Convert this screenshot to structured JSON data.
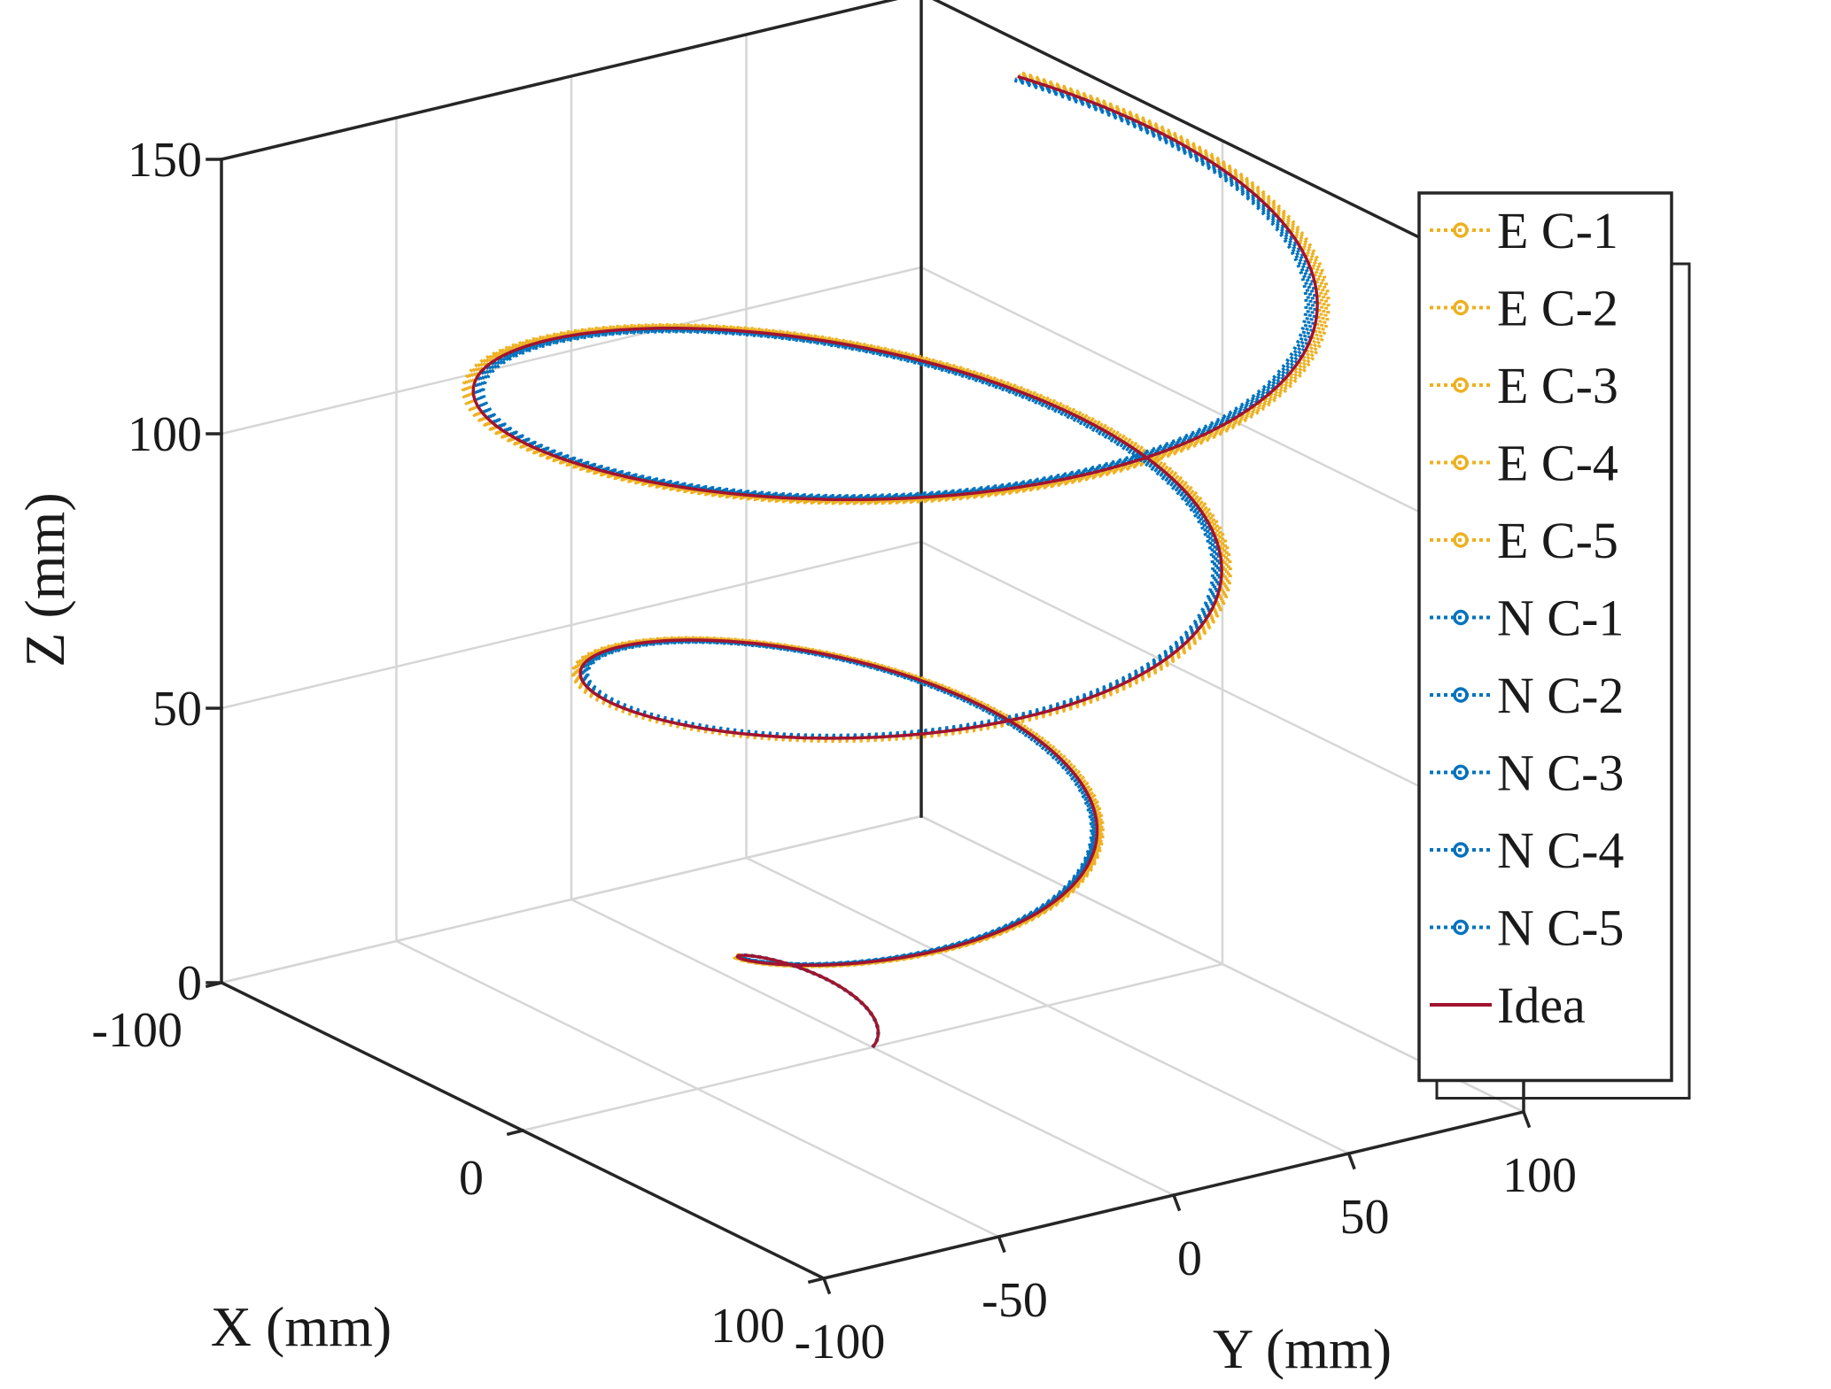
{
  "chart_data": {
    "type": "line",
    "subtype": "3d-helix-trajectory",
    "title": "",
    "xlabel": "X (mm)",
    "ylabel": "Y (mm)",
    "zlabel": "Z (mm)",
    "xlim": [
      -100,
      100
    ],
    "ylim": [
      -100,
      100
    ],
    "zlim": [
      0,
      150
    ],
    "xticks": [
      "-100",
      "0",
      "100"
    ],
    "yticks": [
      "-100",
      "-50",
      "0",
      "50",
      "100"
    ],
    "zticks": [
      "0",
      "50",
      "100",
      "150"
    ],
    "grid": true,
    "box": true,
    "legend_position": "upper-right",
    "helix": {
      "start": {
        "x": 0,
        "y": 0,
        "z": 0
      },
      "end": {
        "x": -30,
        "y": 50,
        "z": 150
      },
      "turns": 3,
      "max_radius_mm": 100
    },
    "series": [
      {
        "name": "E C-1",
        "color": "#EDB120",
        "style": "dotted-circle",
        "offset_mm": 2.5
      },
      {
        "name": "E C-2",
        "color": "#EDB120",
        "style": "dotted-circle",
        "offset_mm": 2.0
      },
      {
        "name": "E C-3",
        "color": "#EDB120",
        "style": "dotted-circle",
        "offset_mm": 1.5
      },
      {
        "name": "E C-4",
        "color": "#EDB120",
        "style": "dotted-circle",
        "offset_mm": 1.0
      },
      {
        "name": "E C-5",
        "color": "#EDB120",
        "style": "dotted-circle",
        "offset_mm": 0.5
      },
      {
        "name": "N C-1",
        "color": "#0072BD",
        "style": "dotted-circle",
        "offset_mm": -0.5
      },
      {
        "name": "N C-2",
        "color": "#0072BD",
        "style": "dotted-circle",
        "offset_mm": -1.0
      },
      {
        "name": "N C-3",
        "color": "#0072BD",
        "style": "dotted-circle",
        "offset_mm": -1.5
      },
      {
        "name": "N C-4",
        "color": "#0072BD",
        "style": "dotted-circle",
        "offset_mm": -2.0
      },
      {
        "name": "N C-5",
        "color": "#0072BD",
        "style": "dotted-circle",
        "offset_mm": -2.5
      },
      {
        "name": "Idea",
        "color": "#A2142F",
        "style": "solid",
        "offset_mm": 0
      }
    ]
  }
}
